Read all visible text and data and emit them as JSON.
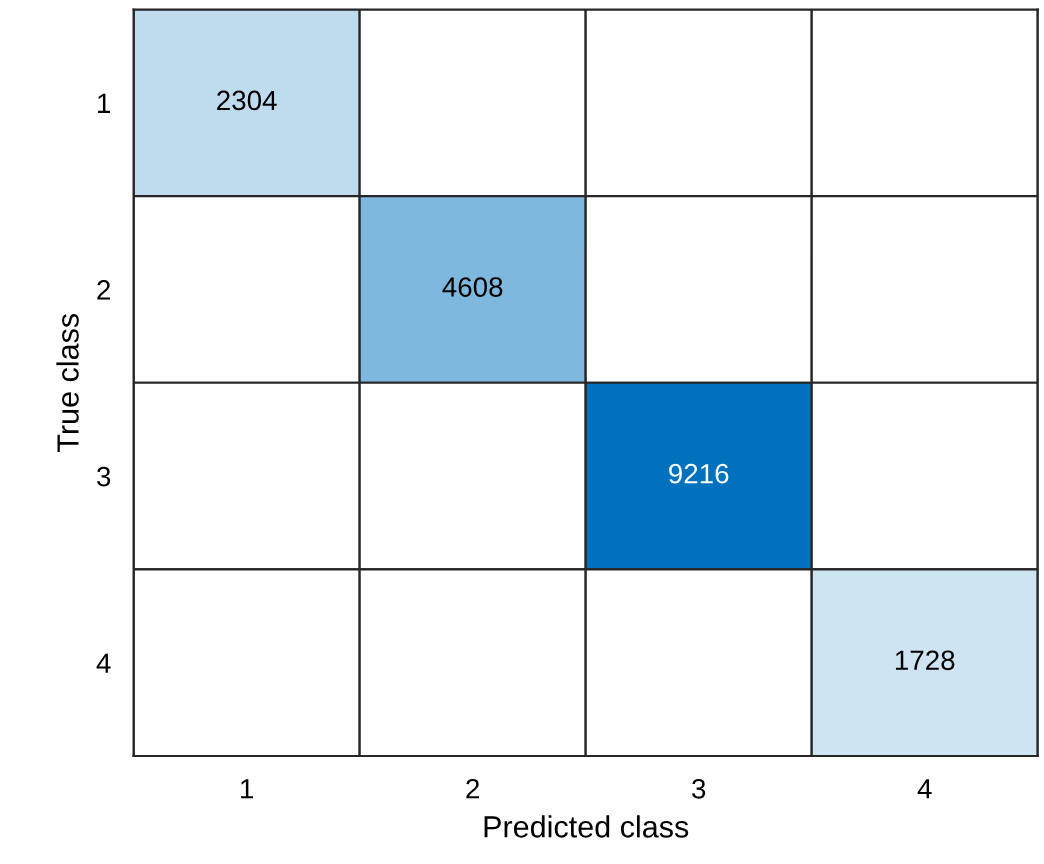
{
  "chart_data": {
    "type": "heatmap",
    "xlabel": "Predicted class",
    "ylabel": "True class",
    "categories": [
      "1",
      "2",
      "3",
      "4"
    ],
    "y_categories": [
      "1",
      "2",
      "3",
      "4"
    ],
    "color": "#0072bd",
    "data_labels": true,
    "cells": [
      [
        2304,
        null,
        null,
        null
      ],
      [
        null,
        4608,
        null,
        null
      ],
      [
        null,
        null,
        9216,
        null
      ],
      [
        null,
        null,
        null,
        1728
      ]
    ]
  }
}
